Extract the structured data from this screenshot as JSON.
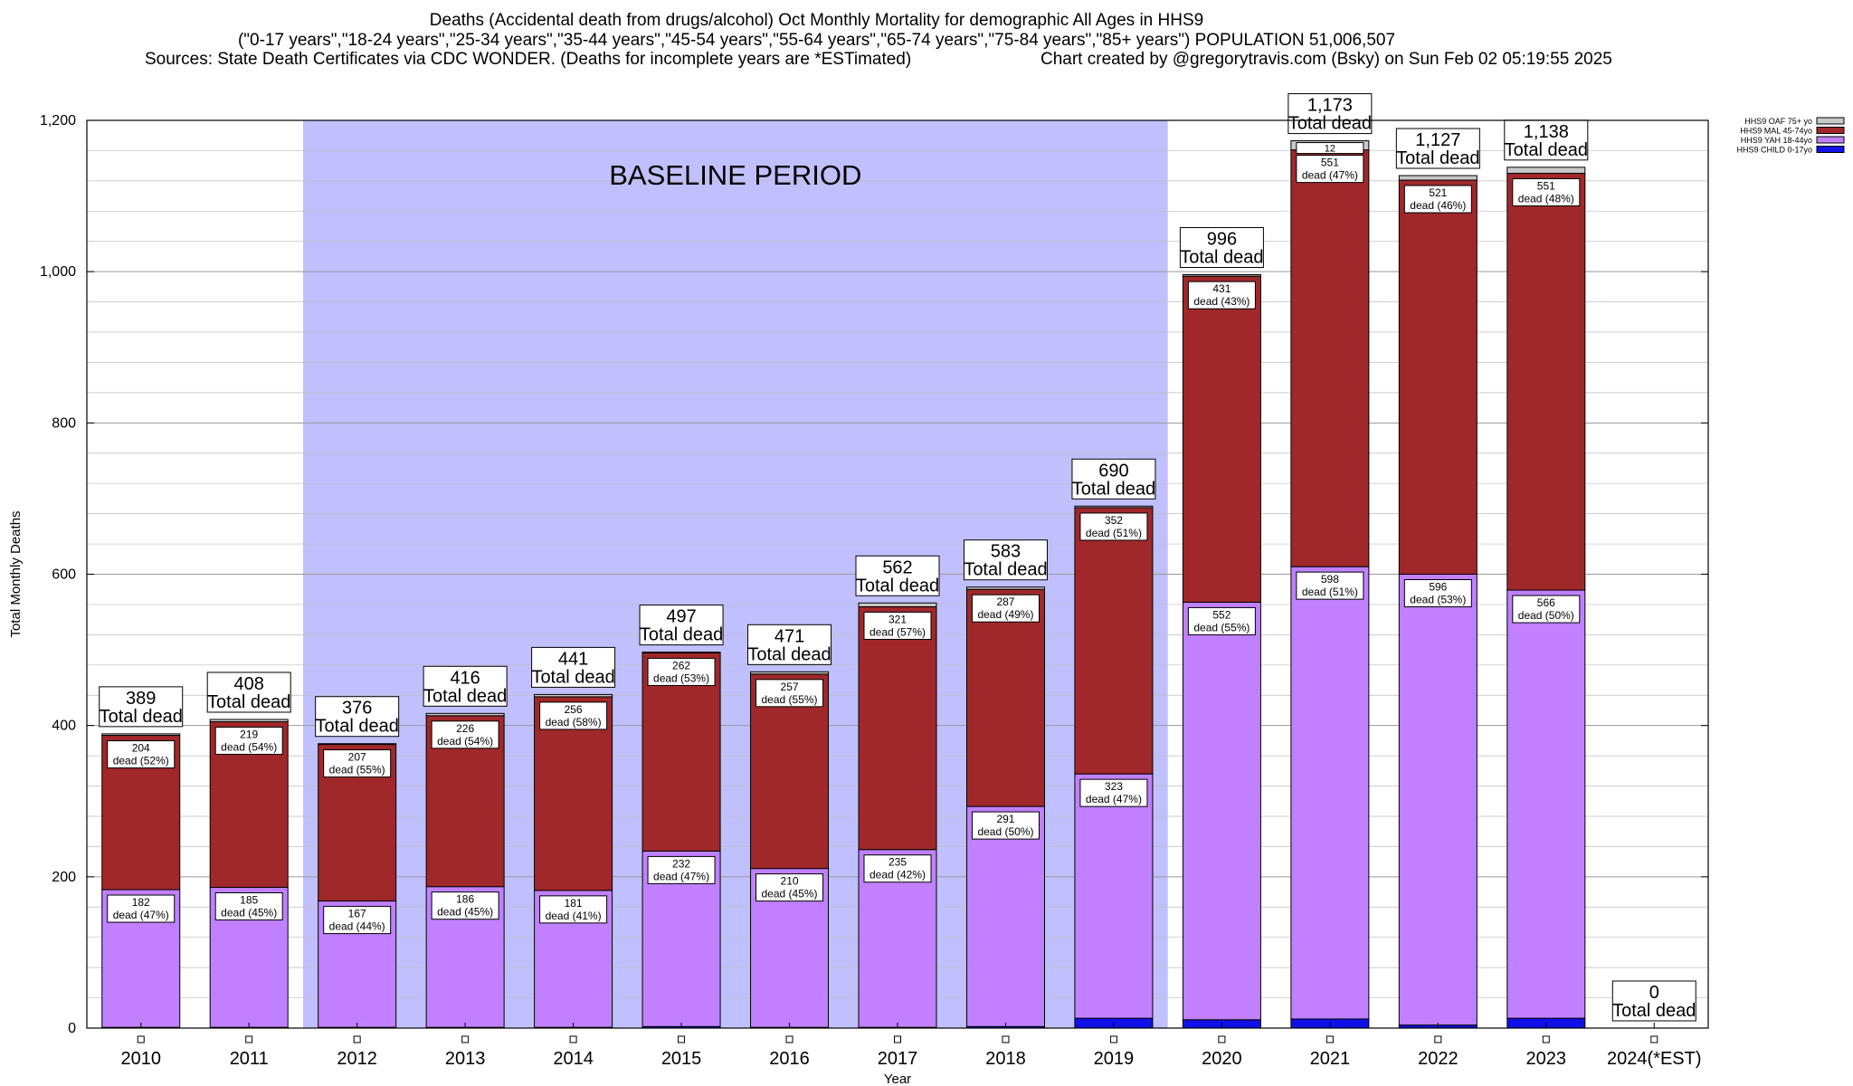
{
  "header": {
    "title_line1": "Deaths (Accidental death from drugs/alcohol) Oct Monthly Mortality for demographic All Ages in HHS9",
    "title_line2": "(\"0-17 years\",\"18-24 years\",\"25-34 years\",\"35-44 years\",\"45-54 years\",\"55-64 years\",\"65-74 years\",\"75-84 years\",\"85+ years\") POPULATION 51,006,507",
    "title_line3_left": "Sources: State Death Certificates via CDC WONDER. (Deaths for incomplete years are *ESTimated)",
    "title_line3_right": "Chart created by @gregorytravis.com (Bsky) on Sun Feb 02 05:19:55 2025"
  },
  "chart_data": {
    "type": "bar",
    "stacked": true,
    "categories": [
      "2010",
      "2011",
      "2012",
      "2013",
      "2014",
      "2015",
      "2016",
      "2017",
      "2018",
      "2019",
      "2020",
      "2021",
      "2022",
      "2023",
      "2024(*EST)"
    ],
    "totals": [
      389,
      408,
      376,
      416,
      441,
      497,
      471,
      562,
      583,
      690,
      996,
      1173,
      1127,
      1138,
      0
    ],
    "total_labels": [
      "389",
      "408",
      "376",
      "416",
      "441",
      "497",
      "471",
      "562",
      "583",
      "690",
      "996",
      "1,173",
      "1,127",
      "1,138",
      "0"
    ],
    "total_suffix": "Total dead",
    "series": [
      {
        "name": "HHS9 CHILD 0-17yo",
        "color": "#1010e8",
        "values": [
          1,
          1,
          1,
          1,
          1,
          2,
          1,
          1,
          2,
          13,
          11,
          12,
          4,
          13,
          0
        ]
      },
      {
        "name": "HHS9 YAH 18-44yo",
        "color": "#c080ff",
        "values": [
          182,
          185,
          167,
          186,
          181,
          232,
          210,
          235,
          291,
          323,
          552,
          598,
          596,
          566,
          0
        ]
      },
      {
        "name": "HHS9 MAL 45-74yo",
        "color": "#a0282a",
        "values": [
          204,
          219,
          207,
          226,
          256,
          262,
          257,
          321,
          287,
          352,
          431,
          551,
          521,
          551,
          0
        ]
      },
      {
        "name": "HHS9 OAF 75+ yo",
        "color": "#c8c8c8",
        "values": [
          2,
          3,
          1,
          3,
          3,
          1,
          3,
          5,
          3,
          2,
          2,
          12,
          6,
          8,
          0
        ]
      }
    ],
    "segment_labels": {
      "yah": [
        [
          "182",
          "dead (47%)"
        ],
        [
          "185",
          "dead (45%)"
        ],
        [
          "167",
          "dead (44%)"
        ],
        [
          "186",
          "dead (45%)"
        ],
        [
          "181",
          "dead (41%)"
        ],
        [
          "232",
          "dead (47%)"
        ],
        [
          "210",
          "dead (45%)"
        ],
        [
          "235",
          "dead (42%)"
        ],
        [
          "291",
          "dead (50%)"
        ],
        [
          "323",
          "dead (47%)"
        ],
        [
          "552",
          "dead (55%)"
        ],
        [
          "598",
          "dead (51%)"
        ],
        [
          "596",
          "dead (53%)"
        ],
        [
          "566",
          "dead (50%)"
        ]
      ],
      "mal": [
        [
          "204",
          "dead (52%)"
        ],
        [
          "219",
          "dead (54%)"
        ],
        [
          "207",
          "dead (55%)"
        ],
        [
          "226",
          "dead (54%)"
        ],
        [
          "256",
          "dead (58%)"
        ],
        [
          "262",
          "dead (53%)"
        ],
        [
          "257",
          "dead (55%)"
        ],
        [
          "321",
          "dead (57%)"
        ],
        [
          "287",
          "dead (49%)"
        ],
        [
          "352",
          "dead (51%)"
        ],
        [
          "431",
          "dead (43%)"
        ],
        [
          "551",
          "dead (47%)"
        ],
        [
          "521",
          "dead (46%)"
        ],
        [
          "551",
          "dead (48%)"
        ]
      ],
      "oaf_extra": [
        {
          "index": 11,
          "text": "12"
        }
      ]
    },
    "baseline_band": {
      "start": "2012",
      "end": "2019",
      "label": "BASELINE PERIOD",
      "color": "#c0c0ff"
    },
    "xlabel": "Year",
    "ylabel": "Total Monthly Deaths",
    "ylim": [
      0,
      1200
    ],
    "yticks": [
      0,
      200,
      400,
      600,
      800,
      1000,
      1200
    ],
    "ytick_labels": [
      "0",
      "200",
      "400",
      "600",
      "800",
      "1,000",
      "1,200"
    ],
    "grid": true,
    "legend_position": "top-right",
    "legend_order": [
      "HHS9 OAF 75+ yo",
      "HHS9 MAL 45-74yo",
      "HHS9 YAH 18-44yo",
      "HHS9 CHILD 0-17yo"
    ]
  }
}
